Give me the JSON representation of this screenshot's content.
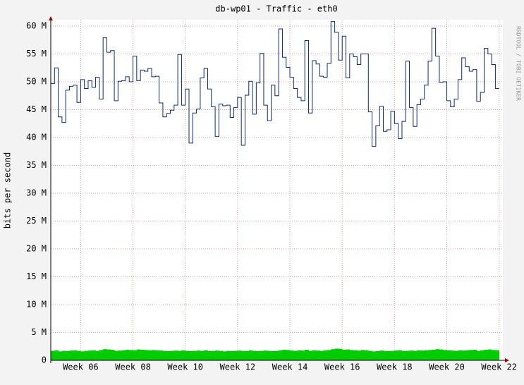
{
  "chart_data": {
    "type": "step-area-line",
    "title": "db-wp01 - Traffic - eth0",
    "y_label": "bits per second",
    "watermark": "RRDTOOL / TOBI OETIKER",
    "grid": true,
    "xlim": [
      0,
      121
    ],
    "xticks": [
      {
        "value": 8,
        "label": "Week 06"
      },
      {
        "value": 22,
        "label": "Week 08"
      },
      {
        "value": 36,
        "label": "Week 10"
      },
      {
        "value": 50,
        "label": "Week 12"
      },
      {
        "value": 64,
        "label": "Week 14"
      },
      {
        "value": 78,
        "label": "Week 16"
      },
      {
        "value": 92,
        "label": "Week 18"
      },
      {
        "value": 106,
        "label": "Week 20"
      },
      {
        "value": 120,
        "label": "Week 22"
      }
    ],
    "ylim": [
      0,
      60000000
    ],
    "yticks": [
      0,
      {
        "value": 5000000,
        "label": "5 M"
      },
      {
        "value": 10000000,
        "label": "10 M"
      },
      {
        "value": 15000000,
        "label": "15 M"
      },
      {
        "value": 20000000,
        "label": "20 M"
      },
      {
        "value": 25000000,
        "label": "25 M"
      },
      {
        "value": 30000000,
        "label": "30 M"
      },
      {
        "value": 35000000,
        "label": "35 M"
      },
      {
        "value": 40000000,
        "label": "40 M"
      },
      {
        "value": 45000000,
        "label": "45 M"
      },
      {
        "value": 50000000,
        "label": "50 M"
      },
      {
        "value": 55000000,
        "label": "55 M"
      },
      {
        "value": 60000000,
        "label": "60 M"
      }
    ],
    "x": [
      0,
      1,
      2,
      3,
      4,
      5,
      6,
      7,
      8,
      9,
      10,
      11,
      12,
      13,
      14,
      15,
      16,
      17,
      18,
      19,
      20,
      21,
      22,
      23,
      24,
      25,
      26,
      27,
      28,
      29,
      30,
      31,
      32,
      33,
      34,
      35,
      36,
      37,
      38,
      39,
      40,
      41,
      42,
      43,
      44,
      45,
      46,
      47,
      48,
      49,
      50,
      51,
      52,
      53,
      54,
      55,
      56,
      57,
      58,
      59,
      60,
      61,
      62,
      63,
      64,
      65,
      66,
      67,
      68,
      69,
      70,
      71,
      72,
      73,
      74,
      75,
      76,
      77,
      78,
      79,
      80,
      81,
      82,
      83,
      84,
      85,
      86,
      87,
      88,
      89,
      90,
      91,
      92,
      93,
      94,
      95,
      96,
      97,
      98,
      99,
      100,
      101,
      102,
      103,
      104,
      105,
      106,
      107,
      108,
      109,
      110,
      111,
      112,
      113,
      114,
      115,
      116,
      117,
      118,
      119
    ],
    "series": [
      {
        "style": "area",
        "color": "#00cc00",
        "values": [
          1700000,
          1800000,
          1600000,
          1700000,
          1650000,
          1750000,
          1800000,
          1700000,
          1600000,
          1700000,
          1750000,
          1800000,
          1700000,
          1850000,
          2000000,
          1950000,
          1900000,
          1700000,
          1750000,
          1800000,
          1900000,
          1850000,
          1800000,
          1950000,
          1900000,
          1850000,
          1800000,
          1850000,
          1800000,
          1750000,
          1700000,
          1650000,
          1700000,
          1750000,
          1700000,
          1800000,
          1700000,
          1650000,
          1700000,
          1750000,
          1700000,
          1800000,
          1650000,
          1700000,
          1750000,
          1700000,
          1600000,
          1700000,
          1650000,
          1700000,
          1750000,
          1700000,
          1650000,
          1800000,
          1700000,
          1650000,
          1700000,
          1750000,
          1700000,
          1650000,
          1700000,
          1800000,
          1900000,
          1850000,
          1750000,
          1700000,
          1800000,
          1750000,
          1900000,
          1700000,
          1800000,
          1750000,
          1700000,
          1800000,
          1850000,
          2000000,
          2100000,
          2050000,
          1900000,
          1950000,
          1850000,
          1800000,
          1750000,
          1850000,
          1800000,
          1700000,
          1600000,
          1650000,
          1750000,
          1700000,
          1650000,
          1700000,
          1750000,
          1800000,
          1650000,
          1700000,
          1750000,
          1700000,
          1800000,
          1750000,
          1800000,
          1850000,
          1900000,
          2000000,
          1950000,
          1850000,
          1800000,
          1750000,
          1700000,
          1800000,
          1750000,
          1800000,
          1850000,
          1900000,
          1700000,
          1800000,
          1900000,
          1950000,
          1850000,
          1800000
        ]
      },
      {
        "style": "line",
        "color": "#0b2a7a",
        "values": [
          49700000,
          52500000,
          43700000,
          42700000,
          48500000,
          49200000,
          49400000,
          46300000,
          50400000,
          48800000,
          50200000,
          49000000,
          50800000,
          46900000,
          57900000,
          55300000,
          55600000,
          46600000,
          50100000,
          50200000,
          50900000,
          50000000,
          54600000,
          50200000,
          52100000,
          51900000,
          52400000,
          50900000,
          51000000,
          46200000,
          43700000,
          44300000,
          44900000,
          45800000,
          54900000,
          45800000,
          48700000,
          39000000,
          44400000,
          45100000,
          50700000,
          52400000,
          48700000,
          45500000,
          40200000,
          46000000,
          45700000,
          45800000,
          43600000,
          45400000,
          47200000,
          38600000,
          47600000,
          50100000,
          44200000,
          49800000,
          55100000,
          45800000,
          43000000,
          49400000,
          47500000,
          59500000,
          54400000,
          52600000,
          50800000,
          48800000,
          47200000,
          46600000,
          57400000,
          44400000,
          53800000,
          53200000,
          51000000,
          50800000,
          53300000,
          60800000,
          58900000,
          53900000,
          58200000,
          50700000,
          55000000,
          54500000,
          53100000,
          55000000,
          55000000,
          44600000,
          38400000,
          42100000,
          45600000,
          41100000,
          41400000,
          44700000,
          42500000,
          39800000,
          42900000,
          53700000,
          45400000,
          42000000,
          45900000,
          46900000,
          49400000,
          53700000,
          59600000,
          54600000,
          49900000,
          50000000,
          46600000,
          45500000,
          46900000,
          50400000,
          54300000,
          52700000,
          51900000,
          52200000,
          46500000,
          48100000,
          56000000,
          55000000,
          53100000,
          48800000
        ]
      }
    ]
  }
}
